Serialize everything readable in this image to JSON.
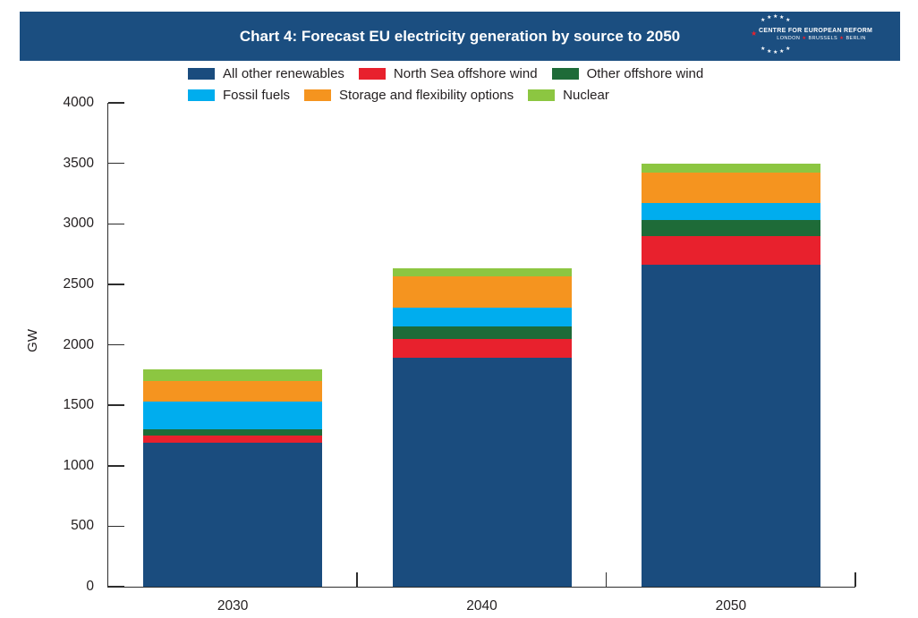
{
  "header": {
    "title": "Chart 4: Forecast EU electricity generation by source to 2050",
    "bg_color": "#1b4e80",
    "logo": {
      "line1": "CENTRE FOR EUROPEAN REFORM",
      "cities": [
        "LONDON",
        "BRUSSELS",
        "BERLIN"
      ],
      "separator": "★",
      "star_char": "★",
      "red_accent": "#e8212d"
    }
  },
  "chart_data": {
    "type": "bar",
    "stacked": true,
    "title": "Chart 4: Forecast EU electricity generation by source to 2050",
    "xlabel": "",
    "ylabel": "GW",
    "ylim": [
      0,
      4000
    ],
    "yticks": [
      0,
      500,
      1000,
      1500,
      2000,
      2500,
      3000,
      3500,
      4000
    ],
    "grid": false,
    "legend_position": "top",
    "categories": [
      "2030",
      "2040",
      "2050"
    ],
    "series": [
      {
        "name": "All other renewables",
        "color": "#1a4c7e",
        "values": [
          1190,
          1890,
          2660
        ]
      },
      {
        "name": "North Sea offshore wind",
        "color": "#e8212d",
        "values": [
          60,
          155,
          235
        ]
      },
      {
        "name": "Other offshore wind",
        "color": "#1e6b38",
        "values": [
          50,
          105,
          140
        ]
      },
      {
        "name": "Fossil fuels",
        "color": "#00adee",
        "values": [
          230,
          155,
          140
        ]
      },
      {
        "name": "Storage and flexibility options",
        "color": "#f5941f",
        "values": [
          170,
          260,
          250
        ]
      },
      {
        "name": "Nuclear",
        "color": "#8cc641",
        "values": [
          100,
          65,
          70
        ]
      }
    ],
    "totals": [
      1800,
      2630,
      3495
    ],
    "legend_rows": [
      [
        "All other renewables",
        "North Sea offshore wind",
        "Other offshore wind"
      ],
      [
        "Fossil fuels",
        "Storage and flexibility options",
        "Nuclear"
      ]
    ]
  },
  "colors": {
    "axis": "#2d2d2d",
    "text": "#231f20"
  }
}
